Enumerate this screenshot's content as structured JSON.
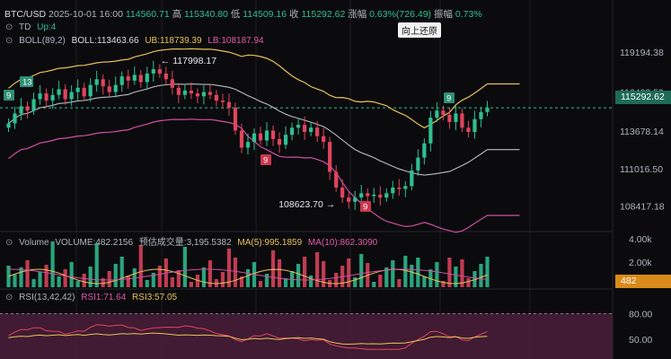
{
  "header": {
    "symbol": "BTC/USD",
    "datetime": "2025-10-01 16:00",
    "open": "114560.71",
    "high_label": "高",
    "high": "115340.80",
    "low_label": "低",
    "low": "114509.16",
    "close_label": "收",
    "close": "115292.62",
    "change_label": "涨幅",
    "change": "0.63%(726.49)",
    "amp_label": "振幅",
    "amp": "0.73%"
  },
  "td": {
    "label": "TD",
    "value": "Up:4"
  },
  "boll": {
    "label": "BOLL(89,2)",
    "boll": "BOLL:113463.66",
    "ub": "UB:118739.39",
    "lb": "LB:108187.94"
  },
  "button_restore": "向上还原",
  "volume_info": {
    "label": "Volume",
    "volume": "VOLUME:482.2156",
    "est": "预估成交量:3,195.5382",
    "ma5": "MA(5):995.1859",
    "ma10": "MA(10):862.3090"
  },
  "rsi_info": {
    "label": "RSI(13,42,42)",
    "rsi1": "RSI1:71.64",
    "rsi3": "RSI3:57.05"
  },
  "annotations": {
    "high_mark": "117998.17",
    "low_mark": "108623.70",
    "td9": "9",
    "td13": "13"
  },
  "colors": {
    "up": "#2fbf91",
    "down": "#e0455d",
    "upper_band": "#e8c15a",
    "middle_band": "#b9bcc4",
    "lower_band": "#d14fa3",
    "rsi_fill": "#4a1f3a"
  },
  "chart_data": [
    {
      "type": "candlestick",
      "title": "BTC/USD",
      "y_ticks": [
        "119194.38",
        "116403.59",
        "113678.14",
        "111016.50",
        "108417.18"
      ],
      "last_price": "115292.62",
      "ylim": [
        106800,
        121600
      ],
      "ohlc_close": [
        114200,
        114900,
        115400,
        115100,
        115900,
        116300,
        115800,
        116200,
        116600,
        115900,
        116400,
        116700,
        116100,
        116900,
        117300,
        116800,
        116400,
        116900,
        117500,
        117200,
        117600,
        117100,
        117700,
        118000,
        117700,
        117300,
        116700,
        116200,
        116500,
        116300,
        116100,
        116400,
        116200,
        115800,
        115700,
        115300,
        113700,
        112500,
        112900,
        113500,
        113000,
        113700,
        113100,
        112700,
        113400,
        113900,
        114100,
        113600,
        113900,
        113300,
        112900,
        110800,
        109700,
        109000,
        108700,
        109000,
        109300,
        109100,
        109200,
        109000,
        109300,
        109700,
        109600,
        109800,
        110900,
        111800,
        112800,
        114600,
        115100,
        114800,
        114300,
        114900,
        113900,
        113600,
        114500,
        115000,
        115300
      ]
    },
    {
      "type": "bar",
      "title": "Volume",
      "y_ticks": [
        "4.00k",
        "2.00k"
      ],
      "last_value": "482"
    },
    {
      "type": "line",
      "title": "RSI(13,42,42)",
      "y_ticks": [
        "80.00",
        "50.00"
      ],
      "series": [
        {
          "name": "RSI1",
          "last": 71.64
        },
        {
          "name": "RSI3",
          "last": 57.05
        }
      ]
    }
  ]
}
